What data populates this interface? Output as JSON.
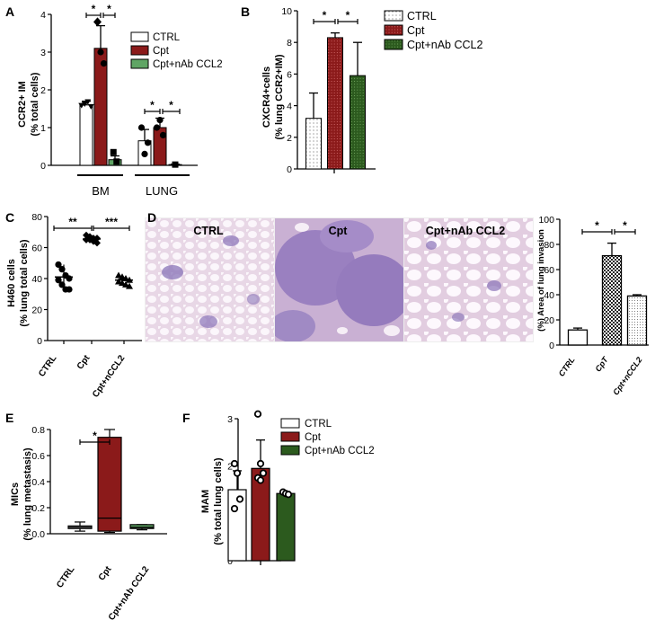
{
  "colors": {
    "ctrl": "#ffffff",
    "cpt": "#8b1a1a",
    "cpt_nab_green": "#5fa564",
    "cpt_nab_dark": "#2c5a1e",
    "cpt_nab_grey": "#555555"
  },
  "chart_data": [
    {
      "panel": "A",
      "type": "bar",
      "ylabel": "CCR2+ IM\n(% total cells)",
      "ylim": [
        0,
        4
      ],
      "yticks": [
        "0",
        "1",
        "2",
        "3",
        "4"
      ],
      "categories": [
        "BM",
        "LUNG"
      ],
      "series": [
        {
          "name": "CTRL",
          "values": [
            1.6,
            0.65
          ],
          "error": [
            0.1,
            0.3
          ]
        },
        {
          "name": "Cpt",
          "values": [
            3.1,
            1.0
          ],
          "error": [
            0.6,
            0.25
          ]
        },
        {
          "name": "Cpt+nAb CCL2",
          "values": [
            0.15,
            0.02
          ],
          "error": [
            0.1,
            0.01
          ]
        }
      ],
      "significance": [
        "*",
        "*",
        "*",
        "*"
      ]
    },
    {
      "panel": "B",
      "type": "bar",
      "ylabel": "CXCR4+cells\n(% lung CCR2+IM)",
      "ylim": [
        0,
        10
      ],
      "yticks": [
        "0",
        "2",
        "4",
        "6",
        "8",
        "10"
      ],
      "series": [
        {
          "name": "CTRL",
          "values": [
            3.2
          ],
          "error": [
            1.6
          ]
        },
        {
          "name": "Cpt",
          "values": [
            8.3
          ],
          "error": [
            0.3
          ]
        },
        {
          "name": "Cpt+nAb CCL2",
          "values": [
            5.9
          ],
          "error": [
            2.1
          ]
        }
      ],
      "significance": [
        "*",
        "*"
      ]
    },
    {
      "panel": "C",
      "type": "scatter",
      "ylabel": "H460 cells\n(% lung total cells)",
      "ylim": [
        0,
        80
      ],
      "yticks": [
        "0",
        "20",
        "40",
        "60",
        "80"
      ],
      "categories": [
        "CTRL",
        "Cpt",
        "Cpt+nCCL2"
      ],
      "points": [
        [
          49,
          46,
          42,
          40,
          39,
          36,
          33,
          33
        ],
        [
          68,
          67,
          66,
          66,
          65,
          65,
          64,
          63
        ],
        [
          42,
          41,
          40,
          39,
          38,
          37,
          36,
          35
        ]
      ],
      "means": [
        41,
        65.5,
        39
      ],
      "significance": [
        "**",
        "***"
      ]
    },
    {
      "panel": "D",
      "type": "bar",
      "ylabel": "(%) Area of lung invasion",
      "ylim": [
        0,
        100
      ],
      "yticks": [
        "0",
        "20",
        "40",
        "60",
        "80",
        "100"
      ],
      "categories": [
        "CTRL",
        "CpT",
        "Cpt+nCCL2"
      ],
      "values": [
        12,
        71,
        39
      ],
      "error": [
        1.5,
        10,
        1
      ],
      "significance": [
        "*",
        "*"
      ]
    },
    {
      "panel": "E",
      "type": "box",
      "ylabel": "MICs\n(% lung metastasis)",
      "ylim": [
        0,
        0.8
      ],
      "yticks": [
        "0.0",
        "0.2",
        "0.4",
        "0.6",
        "0.8"
      ],
      "categories": [
        "CTRL",
        "Cpt",
        "Cpt+nAb CCL2"
      ],
      "boxes": [
        {
          "min": 0.02,
          "q1": 0.04,
          "median": 0.05,
          "q3": 0.06,
          "max": 0.09
        },
        {
          "min": 0.01,
          "q1": 0.02,
          "median": 0.12,
          "q3": 0.74,
          "max": 0.8
        },
        {
          "min": 0.03,
          "q1": 0.04,
          "median": 0.05,
          "q3": 0.07,
          "max": 0.07
        }
      ],
      "significance": [
        "*"
      ]
    },
    {
      "panel": "F",
      "type": "bar",
      "ylabel": "MAM\n(% total lung cells)",
      "ylim": [
        0,
        3
      ],
      "yticks": [
        "0",
        "1",
        "2",
        "3"
      ],
      "series": [
        {
          "name": "CTRL",
          "values": [
            1.5
          ],
          "error": [
            0.4
          ],
          "points": [
            2.05,
            1.85,
            1.3,
            1.1
          ]
        },
        {
          "name": "Cpt",
          "values": [
            1.95
          ],
          "error": [
            0.6
          ],
          "points": [
            3.1,
            2.05,
            1.85,
            1.75,
            1.7
          ]
        },
        {
          "name": "Cpt+nAb CCL2",
          "values": [
            1.42
          ],
          "error": [
            0.04
          ],
          "points": [
            1.45,
            1.42,
            1.4
          ]
        }
      ]
    }
  ],
  "panels": {
    "A": {
      "letter": "A",
      "ylabel1": "CCR2+ IM",
      "ylabel2": "(% total cells)",
      "group1": "BM",
      "group2": "LUNG",
      "legend": [
        "CTRL",
        "Cpt",
        "Cpt+nAb CCL2"
      ]
    },
    "B": {
      "letter": "B",
      "ylabel1": "CXCR4+cells",
      "ylabel2": "(% lung CCR2+IM)",
      "legend": [
        "CTRL",
        "Cpt",
        "Cpt+nAb CCL2"
      ]
    },
    "C": {
      "letter": "C",
      "ylabel1": "H460 cells",
      "ylabel2": "(% lung total cells)",
      "cats": [
        "CTRL",
        "Cpt",
        "Cpt+nCCL2"
      ]
    },
    "D": {
      "letter": "D",
      "ylabel": "(%) Area of lung invasion",
      "images": [
        "CTRL",
        "Cpt",
        "Cpt+nAb CCL2"
      ],
      "cats": [
        "CTRL",
        "CpT",
        "Cpt+nCCL2"
      ]
    },
    "E": {
      "letter": "E",
      "ylabel1": "MICs",
      "ylabel2": "(% lung metastasis)",
      "cats": [
        "CTRL",
        "Cpt",
        "Cpt+nAb CCL2"
      ]
    },
    "F": {
      "letter": "F",
      "ylabel1": "MAM",
      "ylabel2": "(% total lung cells)",
      "legend": [
        "CTRL",
        "Cpt",
        "Cpt+nAb CCL2"
      ]
    }
  }
}
